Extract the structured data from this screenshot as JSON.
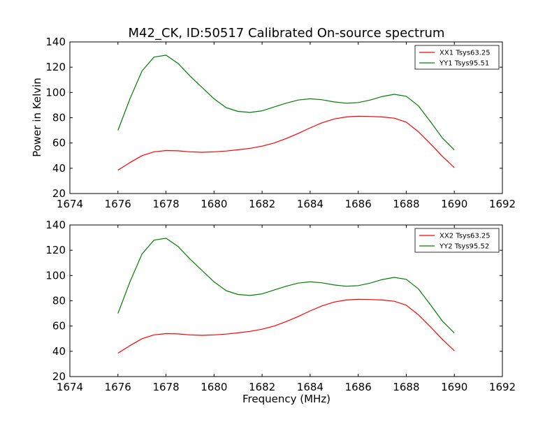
{
  "chart_data": [
    {
      "type": "line",
      "title": "M42_CK, ID:50517 Calibrated On-source spectrum",
      "xlabel": "",
      "ylabel": "Power in Kelvin",
      "xlim": [
        1674,
        1692
      ],
      "ylim": [
        20,
        140
      ],
      "xticks": [
        "1674",
        "1676",
        "1678",
        "1680",
        "1682",
        "1684",
        "1686",
        "1688",
        "1690",
        "1692"
      ],
      "yticks": [
        "20",
        "40",
        "60",
        "80",
        "100",
        "120",
        "140"
      ],
      "legend_position": "top-right",
      "grid": false,
      "series": [
        {
          "name": "XX1 Tsys63.25",
          "color": "#ff0000",
          "x": [
            1676.0,
            1676.5,
            1677.0,
            1677.5,
            1678.0,
            1678.5,
            1679.0,
            1679.5,
            1680.0,
            1680.5,
            1681.0,
            1681.5,
            1682.0,
            1682.5,
            1683.0,
            1683.5,
            1684.0,
            1684.5,
            1685.0,
            1685.5,
            1686.0,
            1686.5,
            1687.0,
            1687.5,
            1688.0,
            1688.5,
            1689.0,
            1689.5,
            1690.0
          ],
          "values": [
            38.5,
            44.5,
            50.0,
            53.0,
            54.0,
            53.8,
            53.0,
            52.6,
            53.0,
            53.6,
            54.6,
            55.8,
            57.5,
            60.0,
            63.5,
            67.5,
            72.0,
            76.0,
            79.0,
            80.6,
            81.2,
            81.0,
            80.6,
            79.6,
            76.5,
            69.0,
            59.5,
            49.5,
            40.5
          ]
        },
        {
          "name": "YY1 Tsys95.51",
          "color": "#008000",
          "x": [
            1676.0,
            1676.5,
            1677.0,
            1677.5,
            1678.0,
            1678.5,
            1679.0,
            1679.5,
            1680.0,
            1680.5,
            1681.0,
            1681.5,
            1682.0,
            1682.5,
            1683.0,
            1683.5,
            1684.0,
            1684.5,
            1685.0,
            1685.5,
            1686.0,
            1686.5,
            1687.0,
            1687.5,
            1688.0,
            1688.5,
            1689.0,
            1689.5,
            1690.0
          ],
          "values": [
            70.0,
            95.0,
            117.0,
            128.0,
            129.5,
            123.0,
            113.0,
            104.0,
            95.0,
            88.0,
            85.0,
            84.2,
            85.5,
            88.5,
            91.5,
            94.0,
            95.0,
            94.2,
            92.5,
            91.5,
            92.0,
            94.0,
            96.8,
            98.5,
            97.0,
            89.5,
            77.0,
            64.0,
            54.5
          ]
        }
      ]
    },
    {
      "type": "line",
      "title": "",
      "xlabel": "Frequency (MHz)",
      "ylabel": "",
      "xlim": [
        1674,
        1692
      ],
      "ylim": [
        20,
        140
      ],
      "xticks": [
        "1674",
        "1676",
        "1678",
        "1680",
        "1682",
        "1684",
        "1686",
        "1688",
        "1690",
        "1692"
      ],
      "yticks": [
        "20",
        "40",
        "60",
        "80",
        "100",
        "120",
        "140"
      ],
      "legend_position": "top-right",
      "grid": false,
      "series": [
        {
          "name": "XX2 Tsys63.25",
          "color": "#ff0000",
          "x": [
            1676.0,
            1676.5,
            1677.0,
            1677.5,
            1678.0,
            1678.5,
            1679.0,
            1679.5,
            1680.0,
            1680.5,
            1681.0,
            1681.5,
            1682.0,
            1682.5,
            1683.0,
            1683.5,
            1684.0,
            1684.5,
            1685.0,
            1685.5,
            1686.0,
            1686.5,
            1687.0,
            1687.5,
            1688.0,
            1688.5,
            1689.0,
            1689.5,
            1690.0
          ],
          "values": [
            38.5,
            44.5,
            50.0,
            53.0,
            54.0,
            53.8,
            53.0,
            52.6,
            53.0,
            53.6,
            54.6,
            55.8,
            57.5,
            60.0,
            63.5,
            67.5,
            72.0,
            76.0,
            79.0,
            80.6,
            81.2,
            81.0,
            80.6,
            79.6,
            76.5,
            69.0,
            59.5,
            49.5,
            40.5
          ]
        },
        {
          "name": "YY2 Tsys95.52",
          "color": "#008000",
          "x": [
            1676.0,
            1676.5,
            1677.0,
            1677.5,
            1678.0,
            1678.5,
            1679.0,
            1679.5,
            1680.0,
            1680.5,
            1681.0,
            1681.5,
            1682.0,
            1682.5,
            1683.0,
            1683.5,
            1684.0,
            1684.5,
            1685.0,
            1685.5,
            1686.0,
            1686.5,
            1687.0,
            1687.5,
            1688.0,
            1688.5,
            1689.0,
            1689.5,
            1690.0
          ],
          "values": [
            70.0,
            95.0,
            117.0,
            128.0,
            129.5,
            123.0,
            113.0,
            104.0,
            95.0,
            88.0,
            85.0,
            84.2,
            85.5,
            88.5,
            91.5,
            94.0,
            95.0,
            94.2,
            92.5,
            91.5,
            92.0,
            94.0,
            96.8,
            98.5,
            97.0,
            89.5,
            77.0,
            64.0,
            54.5
          ]
        }
      ]
    }
  ]
}
